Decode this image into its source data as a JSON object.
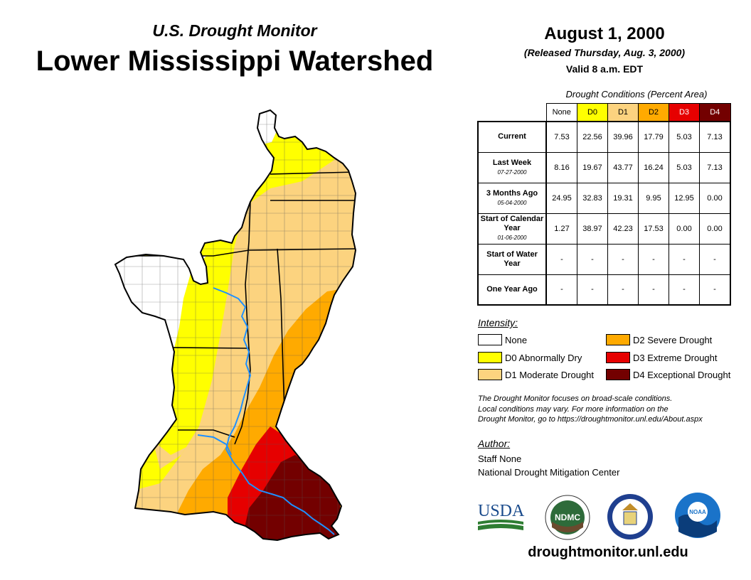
{
  "header": {
    "subtitle": "U.S. Drought Monitor",
    "title": "Lower Mississippi Watershed",
    "date": "August 1, 2000",
    "released": "(Released Thursday, Aug. 3, 2000)",
    "valid": "Valid 8 a.m. EDT"
  },
  "table": {
    "caption": "Drought Conditions (Percent Area)",
    "columns": [
      "None",
      "D0",
      "D1",
      "D2",
      "D3",
      "D4"
    ],
    "column_colors": [
      "#ffffff",
      "#ffff00",
      "#fcd37f",
      "#ffaa00",
      "#e60000",
      "#730000"
    ],
    "column_text_colors": [
      "#000000",
      "#000000",
      "#000000",
      "#000000",
      "#ffffff",
      "#ffffff"
    ],
    "rows": [
      {
        "label": "Current",
        "sublabel": "",
        "values": [
          "7.53",
          "22.56",
          "39.96",
          "17.79",
          "5.03",
          "7.13"
        ]
      },
      {
        "label": "Last Week",
        "sublabel": "07-27-2000",
        "values": [
          "8.16",
          "19.67",
          "43.77",
          "16.24",
          "5.03",
          "7.13"
        ]
      },
      {
        "label": "3 Months Ago",
        "sublabel": "05-04-2000",
        "values": [
          "24.95",
          "32.83",
          "19.31",
          "9.95",
          "12.95",
          "0.00"
        ]
      },
      {
        "label": "Start of Calendar Year",
        "sublabel": "01-06-2000",
        "values": [
          "1.27",
          "38.97",
          "42.23",
          "17.53",
          "0.00",
          "0.00"
        ]
      },
      {
        "label": "Start of Water Year",
        "sublabel": "",
        "values": [
          "-",
          "-",
          "-",
          "-",
          "-",
          "-"
        ]
      },
      {
        "label": "One Year Ago",
        "sublabel": "",
        "values": [
          "-",
          "-",
          "-",
          "-",
          "-",
          "-"
        ]
      }
    ]
  },
  "legend": {
    "title": "Intensity:",
    "items": [
      {
        "label": "None",
        "color": "#ffffff"
      },
      {
        "label": "D0 Abnormally Dry",
        "color": "#ffff00"
      },
      {
        "label": "D1 Moderate Drought",
        "color": "#fcd37f"
      },
      {
        "label": "D2 Severe Drought",
        "color": "#ffaa00"
      },
      {
        "label": "D3 Extreme Drought",
        "color": "#e60000"
      },
      {
        "label": "D4 Exceptional Drought",
        "color": "#730000"
      }
    ]
  },
  "disclaimer": {
    "line1": "The Drought Monitor focuses on broad-scale conditions.",
    "line2": "Local conditions may vary. For more information on the",
    "line3": "Drought Monitor, go to https://droughtmonitor.unl.edu/About.aspx"
  },
  "author": {
    "title": "Author:",
    "name": "Staff None",
    "org": "National Drought Mitigation Center"
  },
  "logos": {
    "usda": "USDA",
    "ndmc": "NDMC",
    "noaa": "NOAA"
  },
  "website": "droughtmonitor.unl.edu",
  "map_colors": {
    "none": "#ffffff",
    "d0": "#ffff00",
    "d1": "#fcd37f",
    "d2": "#ffaa00",
    "d3": "#e60000",
    "d4": "#730000",
    "river": "#1e90ff"
  }
}
